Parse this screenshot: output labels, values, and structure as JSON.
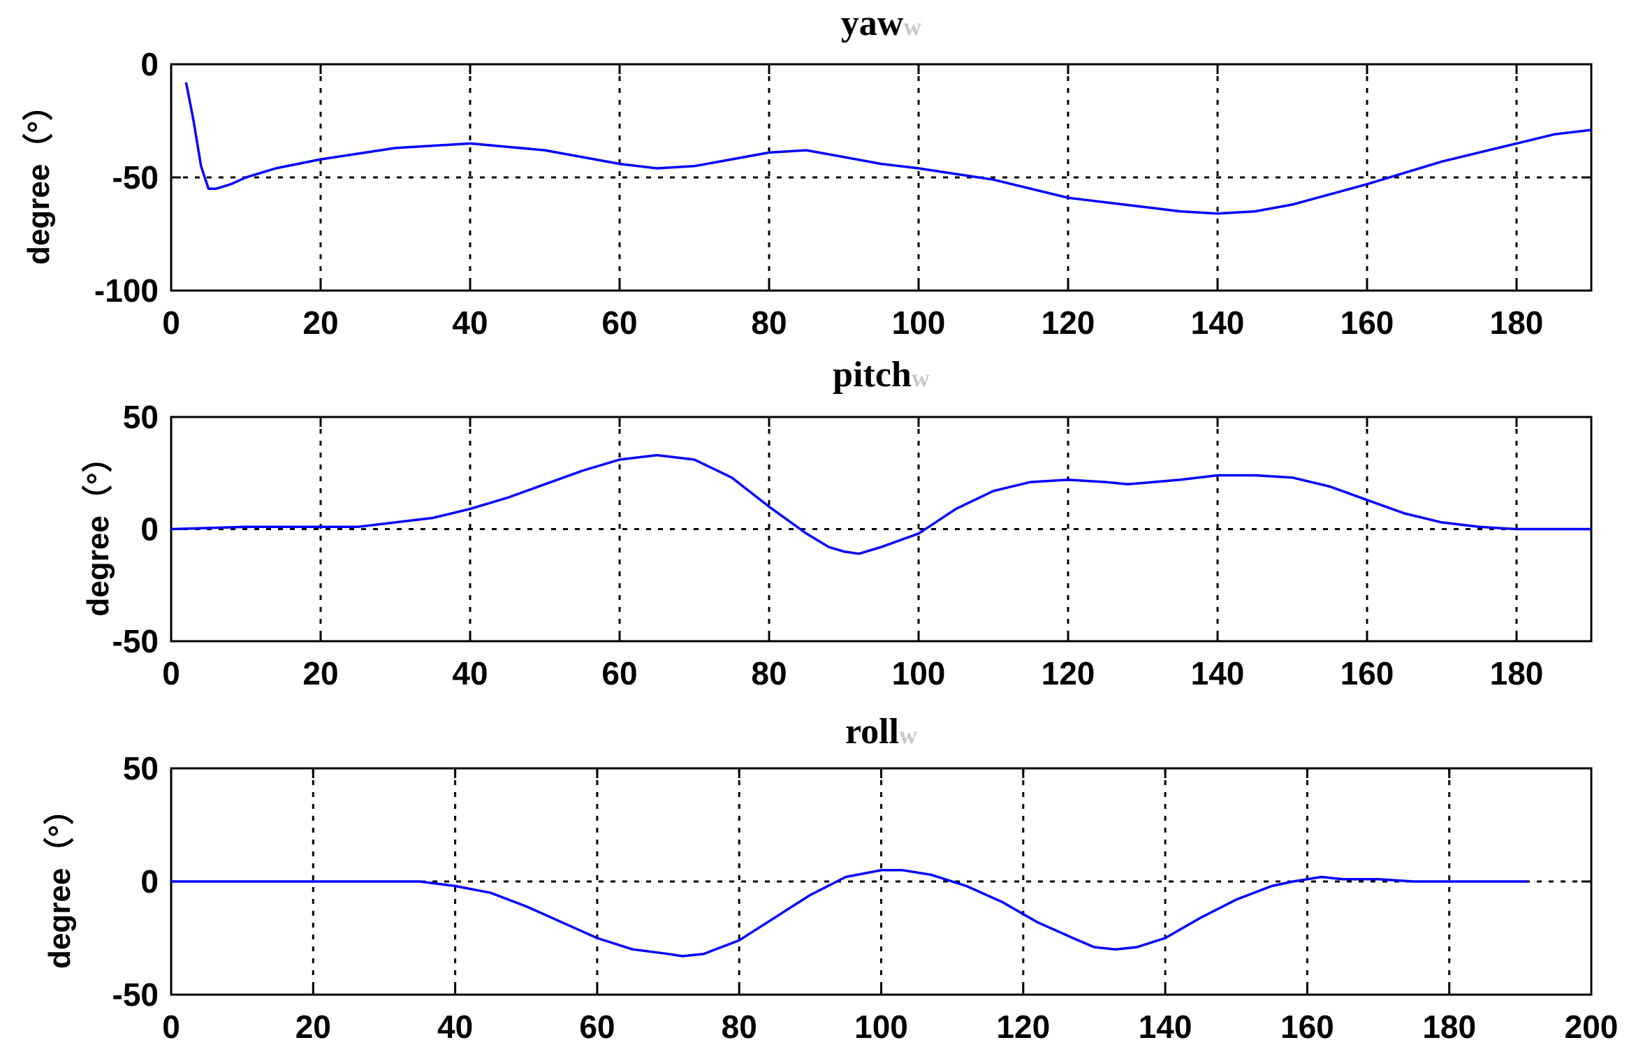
{
  "chart_data": [
    {
      "type": "line",
      "title": "yaw",
      "title_mark": "w",
      "ylabel": "degree（°）",
      "xlim": [
        0,
        190
      ],
      "ylim": [
        -100,
        0
      ],
      "xticks": [
        0,
        20,
        40,
        60,
        80,
        100,
        120,
        140,
        160,
        180
      ],
      "yticks": [
        -100,
        -50,
        0
      ],
      "xtick_labels": [
        "0",
        "20",
        "40",
        "60",
        "80",
        "100",
        "120",
        "140",
        "160",
        "180"
      ],
      "ytick_labels": [
        "-100",
        "-50",
        "0"
      ],
      "grid": true,
      "line_color": "#0000ff",
      "series": [
        {
          "x": [
            2,
            3,
            4,
            5,
            6,
            8,
            10,
            14,
            20,
            30,
            40,
            50,
            60,
            65,
            70,
            75,
            80,
            85,
            90,
            95,
            100,
            110,
            120,
            130,
            135,
            140,
            145,
            150,
            160,
            170,
            180,
            185,
            190
          ],
          "y": [
            -8,
            -25,
            -45,
            -55,
            -55,
            -53,
            -50,
            -46,
            -42,
            -37,
            -35,
            -38,
            -44,
            -46,
            -45,
            -42,
            -39,
            -38,
            -41,
            -44,
            -46,
            -51,
            -59,
            -63,
            -65,
            -66,
            -65,
            -62,
            -53,
            -43,
            -35,
            -31,
            -29
          ]
        }
      ]
    },
    {
      "type": "line",
      "title": "pitch",
      "title_mark": "w",
      "ylabel": "degree（°）",
      "xlim": [
        0,
        190
      ],
      "ylim": [
        -50,
        50
      ],
      "xticks": [
        0,
        20,
        40,
        60,
        80,
        100,
        120,
        140,
        160,
        180
      ],
      "yticks": [
        -50,
        0,
        50
      ],
      "xtick_labels": [
        "0",
        "20",
        "40",
        "60",
        "80",
        "100",
        "120",
        "140",
        "160",
        "180"
      ],
      "ytick_labels": [
        "-50",
        "0",
        "50"
      ],
      "grid": true,
      "line_color": "#0000ff",
      "series": [
        {
          "x": [
            0,
            10,
            20,
            25,
            30,
            35,
            40,
            45,
            50,
            55,
            60,
            65,
            70,
            75,
            80,
            85,
            88,
            90,
            92,
            95,
            100,
            105,
            110,
            115,
            120,
            125,
            128,
            135,
            140,
            145,
            150,
            155,
            160,
            165,
            170,
            175,
            180,
            190
          ],
          "y": [
            0,
            1,
            1,
            1,
            3,
            5,
            9,
            14,
            20,
            26,
            31,
            33,
            31,
            23,
            10,
            -2,
            -8,
            -10,
            -11,
            -8,
            -2,
            9,
            17,
            21,
            22,
            21,
            20,
            22,
            24,
            24,
            23,
            19,
            13,
            7,
            3,
            1,
            0,
            0
          ]
        }
      ]
    },
    {
      "type": "line",
      "title": "roll",
      "title_mark": "w",
      "ylabel": "degree（°）",
      "xlim": [
        0,
        200
      ],
      "ylim": [
        -50,
        50
      ],
      "xticks": [
        0,
        20,
        40,
        60,
        80,
        100,
        120,
        140,
        160,
        180,
        200
      ],
      "yticks": [
        -50,
        0,
        50
      ],
      "xtick_labels": [
        "0",
        "20",
        "40",
        "60",
        "80",
        "100",
        "120",
        "140",
        "160",
        "180",
        "200"
      ],
      "ytick_labels": [
        "-50",
        "0",
        "50"
      ],
      "grid": true,
      "line_color": "#0000ff",
      "series": [
        {
          "x": [
            0,
            10,
            20,
            30,
            35,
            40,
            45,
            50,
            55,
            60,
            65,
            70,
            72,
            75,
            80,
            85,
            90,
            95,
            100,
            103,
            107,
            112,
            117,
            122,
            127,
            130,
            133,
            136,
            140,
            145,
            150,
            155,
            158,
            162,
            165,
            170,
            175,
            180,
            191
          ],
          "y": [
            0,
            0,
            0,
            0,
            0,
            -2,
            -5,
            -11,
            -18,
            -25,
            -30,
            -32,
            -33,
            -32,
            -26,
            -16,
            -6,
            2,
            5,
            5,
            3,
            -2,
            -9,
            -18,
            -25,
            -29,
            -30,
            -29,
            -25,
            -16,
            -8,
            -2,
            0,
            2,
            1,
            1,
            0,
            0,
            0
          ]
        }
      ]
    }
  ]
}
